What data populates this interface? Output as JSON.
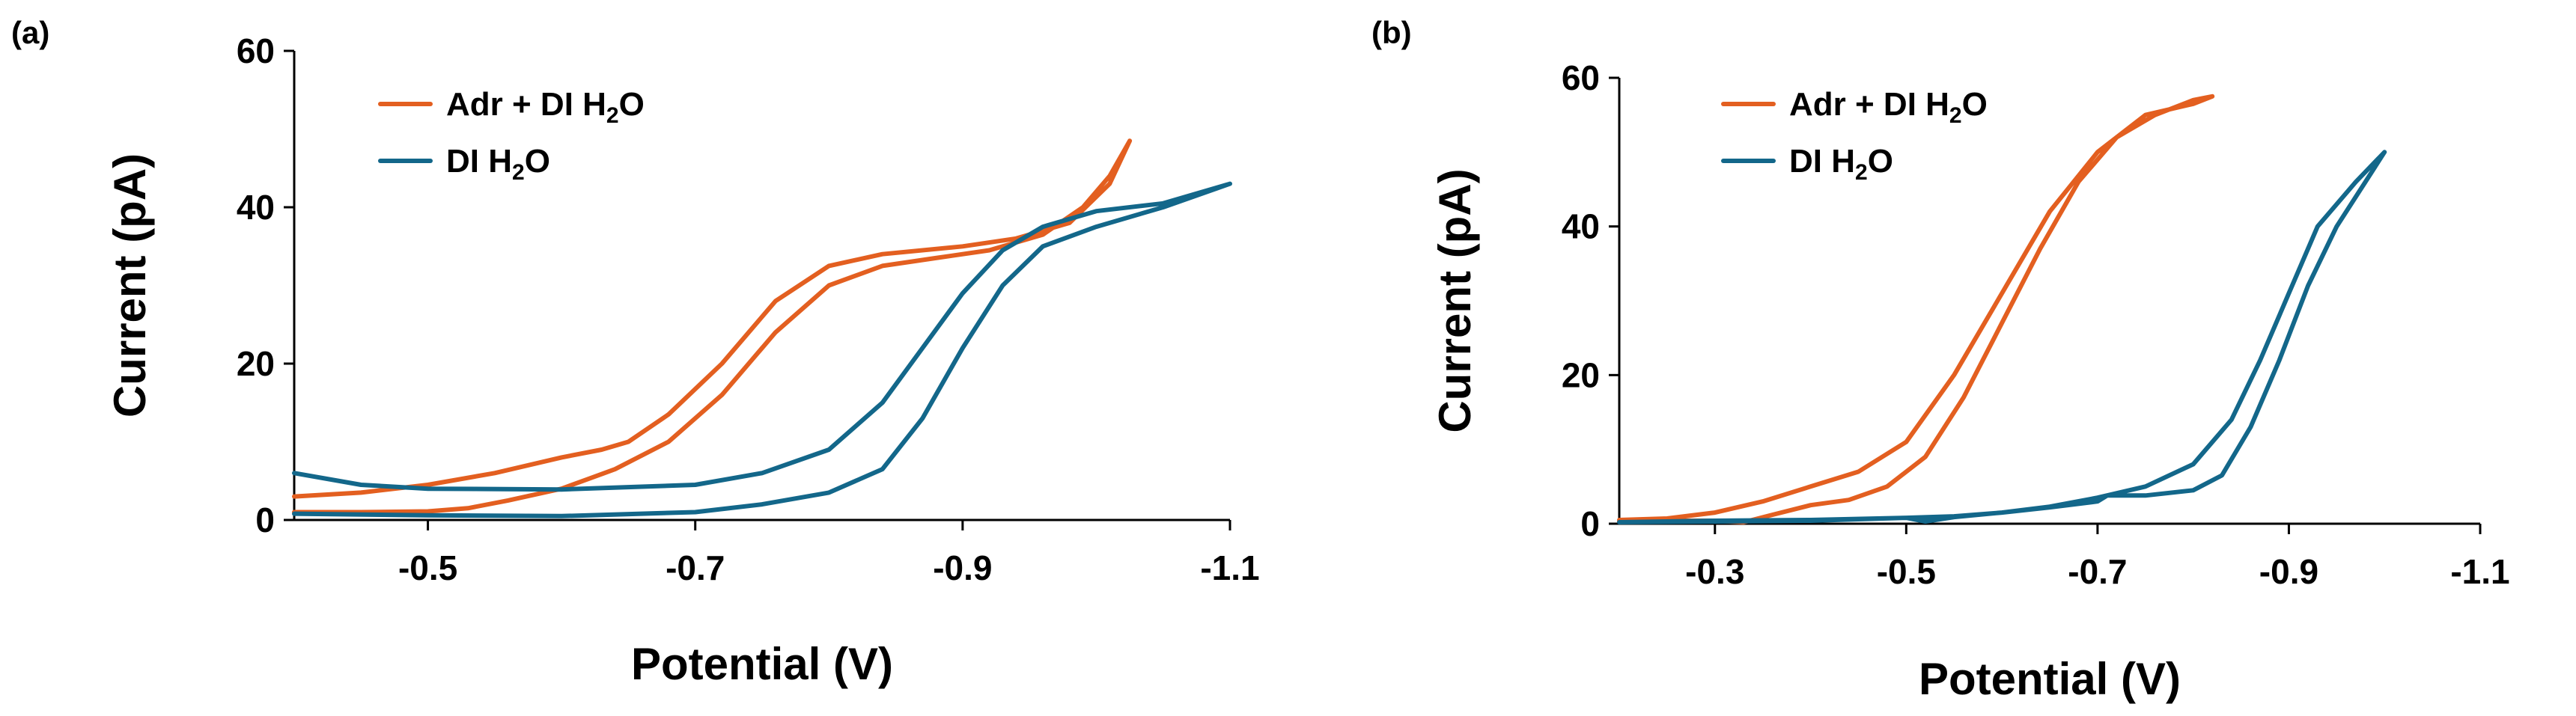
{
  "chart_data": [
    {
      "type": "line",
      "panel_label": "(a)",
      "xlabel": "Potential (V)",
      "ylabel": "Current (pA)",
      "xlim": [
        -0.4,
        -1.1
      ],
      "ylim": [
        0,
        60
      ],
      "xticks": [
        -0.5,
        -0.7,
        -0.9,
        -1.1
      ],
      "xtick_labels": [
        "-0.5",
        "-0.7",
        "-0.9",
        "-1.1"
      ],
      "yticks": [
        0,
        20,
        40,
        60
      ],
      "ytick_labels": [
        "0",
        "20",
        "40",
        "60"
      ],
      "legend": [
        {
          "name": "Adr + DI H",
          "sub": "2",
          "suffix": "O",
          "color": "#E35F20"
        },
        {
          "name": "DI H",
          "sub": "2",
          "suffix": "O",
          "color": "#13678A"
        }
      ],
      "series": [
        {
          "name": "Adr + DI H2O",
          "color": "#E35F20",
          "points": [
            [
              -0.4,
              1.0
            ],
            [
              -0.45,
              1.0
            ],
            [
              -0.5,
              1.1
            ],
            [
              -0.53,
              1.5
            ],
            [
              -0.56,
              2.5
            ],
            [
              -0.6,
              4.0
            ],
            [
              -0.64,
              6.5
            ],
            [
              -0.68,
              10
            ],
            [
              -0.72,
              16
            ],
            [
              -0.76,
              24
            ],
            [
              -0.8,
              30
            ],
            [
              -0.84,
              32.5
            ],
            [
              -0.88,
              33.5
            ],
            [
              -0.92,
              34.5
            ],
            [
              -0.96,
              36.5
            ],
            [
              -0.99,
              40
            ],
            [
              -1.01,
              44
            ],
            [
              -1.025,
              48.5
            ],
            [
              -1.01,
              43
            ],
            [
              -0.98,
              38
            ],
            [
              -0.94,
              36
            ],
            [
              -0.9,
              35
            ],
            [
              -0.84,
              34
            ],
            [
              -0.8,
              32.5
            ],
            [
              -0.76,
              28
            ],
            [
              -0.72,
              20
            ],
            [
              -0.68,
              13.5
            ],
            [
              -0.65,
              10
            ],
            [
              -0.63,
              9
            ],
            [
              -0.6,
              8
            ],
            [
              -0.55,
              6
            ],
            [
              -0.5,
              4.5
            ],
            [
              -0.45,
              3.5
            ],
            [
              -0.4,
              3.0
            ]
          ]
        },
        {
          "name": "DI H2O",
          "color": "#13678A",
          "points": [
            [
              -0.4,
              6.0
            ],
            [
              -0.45,
              4.5
            ],
            [
              -0.5,
              4.0
            ],
            [
              -0.6,
              3.9
            ],
            [
              -0.7,
              4.5
            ],
            [
              -0.75,
              6.0
            ],
            [
              -0.8,
              9.0
            ],
            [
              -0.84,
              15
            ],
            [
              -0.87,
              22
            ],
            [
              -0.9,
              29
            ],
            [
              -0.93,
              34.5
            ],
            [
              -0.96,
              37.5
            ],
            [
              -1.0,
              39.5
            ],
            [
              -1.05,
              40.5
            ],
            [
              -1.1,
              43.0
            ],
            [
              -1.05,
              40.0
            ],
            [
              -1.0,
              37.5
            ],
            [
              -0.96,
              35
            ],
            [
              -0.93,
              30
            ],
            [
              -0.9,
              22
            ],
            [
              -0.87,
              13
            ],
            [
              -0.84,
              6.5
            ],
            [
              -0.8,
              3.5
            ],
            [
              -0.75,
              2.0
            ],
            [
              -0.7,
              1.0
            ],
            [
              -0.6,
              0.5
            ],
            [
              -0.5,
              0.6
            ],
            [
              -0.4,
              0.8
            ]
          ]
        }
      ]
    },
    {
      "type": "line",
      "panel_label": "(b)",
      "xlabel": "Potential (V)",
      "ylabel": "Current (pA)",
      "xlim": [
        -0.2,
        -1.1
      ],
      "ylim": [
        0,
        60
      ],
      "xticks": [
        -0.3,
        -0.5,
        -0.7,
        -0.9,
        -1.1
      ],
      "xtick_labels": [
        "-0.3",
        "-0.5",
        "-0.7",
        "-0.9",
        "-1.1"
      ],
      "yticks": [
        0,
        20,
        40,
        60
      ],
      "ytick_labels": [
        "0",
        "20",
        "40",
        "60"
      ],
      "legend": [
        {
          "name": "Adr + DI H",
          "sub": "2",
          "suffix": "O",
          "color": "#E35F20"
        },
        {
          "name": "DI H",
          "sub": "2",
          "suffix": "O",
          "color": "#13678A"
        }
      ],
      "series": [
        {
          "name": "Adr + DI H2O",
          "color": "#E35F20",
          "points": [
            [
              -0.2,
              0.5
            ],
            [
              -0.25,
              0.7
            ],
            [
              -0.3,
              1.5
            ],
            [
              -0.35,
              3.0
            ],
            [
              -0.4,
              5.0
            ],
            [
              -0.45,
              7.0
            ],
            [
              -0.5,
              11
            ],
            [
              -0.55,
              20
            ],
            [
              -0.6,
              31
            ],
            [
              -0.65,
              42
            ],
            [
              -0.7,
              50
            ],
            [
              -0.75,
              55
            ],
            [
              -0.8,
              56.5
            ],
            [
              -0.82,
              57.5
            ],
            [
              -0.8,
              57
            ],
            [
              -0.76,
              55
            ],
            [
              -0.72,
              52
            ],
            [
              -0.68,
              46
            ],
            [
              -0.64,
              37
            ],
            [
              -0.6,
              27
            ],
            [
              -0.56,
              17
            ],
            [
              -0.52,
              9
            ],
            [
              -0.48,
              5
            ],
            [
              -0.44,
              3.2
            ],
            [
              -0.4,
              2.5
            ],
            [
              -0.36,
              1.2
            ],
            [
              -0.33,
              0.2
            ],
            [
              -0.3,
              0.4
            ],
            [
              -0.25,
              0.4
            ],
            [
              -0.2,
              0.3
            ]
          ]
        },
        {
          "name": "DI H2O",
          "color": "#13678A",
          "points": [
            [
              -0.2,
              0.2
            ],
            [
              -0.3,
              0.4
            ],
            [
              -0.4,
              0.5
            ],
            [
              -0.5,
              0.8
            ],
            [
              -0.55,
              1.0
            ],
            [
              -0.6,
              1.5
            ],
            [
              -0.65,
              2.3
            ],
            [
              -0.7,
              3.5
            ],
            [
              -0.75,
              5.0
            ],
            [
              -0.8,
              8.0
            ],
            [
              -0.84,
              14
            ],
            [
              -0.87,
              22
            ],
            [
              -0.9,
              31
            ],
            [
              -0.93,
              40
            ],
            [
              -0.97,
              46
            ],
            [
              -1.0,
              50
            ],
            [
              -0.98,
              46
            ],
            [
              -0.95,
              40
            ],
            [
              -0.92,
              32
            ],
            [
              -0.89,
              22
            ],
            [
              -0.86,
              13
            ],
            [
              -0.83,
              6.5
            ],
            [
              -0.8,
              4.5
            ],
            [
              -0.75,
              3.8
            ],
            [
              -0.71,
              3.8
            ],
            [
              -0.7,
              3.0
            ],
            [
              -0.65,
              2.2
            ],
            [
              -0.6,
              1.5
            ],
            [
              -0.55,
              0.9
            ],
            [
              -0.52,
              0.3
            ],
            [
              -0.5,
              0.8
            ],
            [
              -0.45,
              0.6
            ],
            [
              -0.4,
              0.4
            ],
            [
              -0.3,
              0.3
            ],
            [
              -0.2,
              0.2
            ]
          ]
        }
      ]
    }
  ]
}
